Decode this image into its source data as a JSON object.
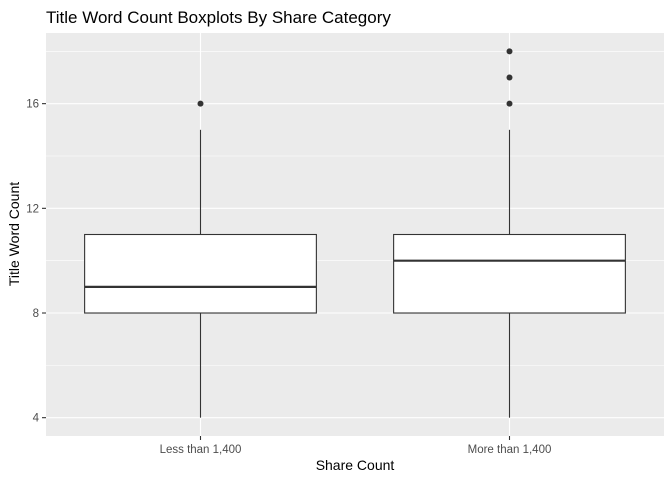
{
  "chart_data": {
    "type": "boxplot",
    "title": "Title Word Count Boxplots By Share Category",
    "xlabel": "Share Count",
    "ylabel": "Title Word Count",
    "categories": [
      "Less than 1,400",
      "More than 1,400"
    ],
    "boxes": [
      {
        "category": "Less than 1,400",
        "whisker_low": 4,
        "q1": 8,
        "median": 9,
        "q3": 11,
        "whisker_high": 15,
        "outliers": [
          16
        ]
      },
      {
        "category": "More than 1,400",
        "whisker_low": 4,
        "q1": 8,
        "median": 10,
        "q3": 11,
        "whisker_high": 15,
        "outliers": [
          16,
          17,
          18
        ]
      }
    ],
    "yticks": [
      4,
      8,
      12,
      16
    ],
    "ylim": [
      3.3,
      18.7
    ],
    "grid": true,
    "colors": {
      "panel_background": "#ebebeb",
      "grid_major": "#ffffff",
      "box_fill": "#ffffff",
      "box_stroke": "#333333",
      "outlier": "#333333",
      "tick_text": "#4d4d4d"
    }
  }
}
